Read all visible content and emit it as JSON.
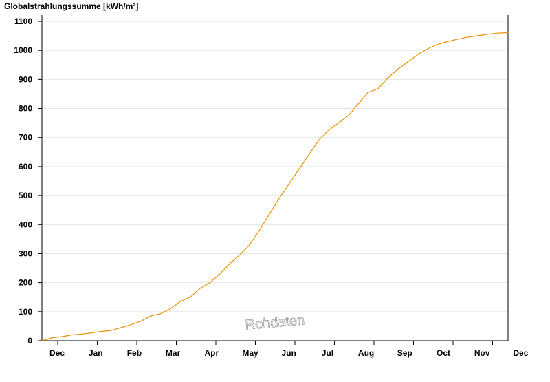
{
  "chart_data": {
    "type": "line",
    "title": "",
    "ylabel": "Globalstrahlungssumme [kWh/m²]",
    "xlabel": "",
    "ylim": [
      0,
      1100
    ],
    "yticks": [
      0,
      100,
      200,
      300,
      400,
      500,
      600,
      700,
      800,
      900,
      1000,
      1100
    ],
    "xlim": [
      0,
      11.8
    ],
    "month_labels": [
      "Dec",
      "Jan",
      "Feb",
      "Mar",
      "Apr",
      "May",
      "Jun",
      "Jul",
      "Aug",
      "Sep",
      "Oct",
      "Nov",
      "Dec"
    ],
    "grid": true,
    "line_color": "#e89000",
    "series": [
      {
        "x": [
          0,
          0.25,
          0.5,
          0.75,
          1.0,
          1.25,
          1.5,
          1.75,
          2.0,
          2.25,
          2.5,
          2.75,
          3.0,
          3.25,
          3.5,
          3.75,
          4.0,
          4.25,
          4.5,
          4.75,
          5.0,
          5.25,
          5.5,
          5.75,
          6.0,
          6.25,
          6.5,
          6.75,
          7.0,
          7.25,
          7.5,
          7.75,
          8.0,
          8.25,
          8.5,
          8.75,
          9.0,
          9.25,
          9.5,
          9.75,
          10.0,
          10.25,
          10.5,
          10.75,
          11.0,
          11.25,
          11.5,
          11.75,
          11.8
        ],
        "y": [
          0,
          10,
          14,
          20,
          23,
          27,
          32,
          35,
          45,
          55,
          67,
          85,
          93,
          110,
          135,
          150,
          180,
          200,
          230,
          265,
          295,
          330,
          380,
          435,
          490,
          540,
          590,
          640,
          690,
          725,
          750,
          775,
          815,
          855,
          868,
          905,
          935,
          960,
          985,
          1005,
          1020,
          1030,
          1038,
          1045,
          1050,
          1055,
          1059,
          1061,
          1062
        ]
      }
    ],
    "watermark": "Rohdaten"
  }
}
